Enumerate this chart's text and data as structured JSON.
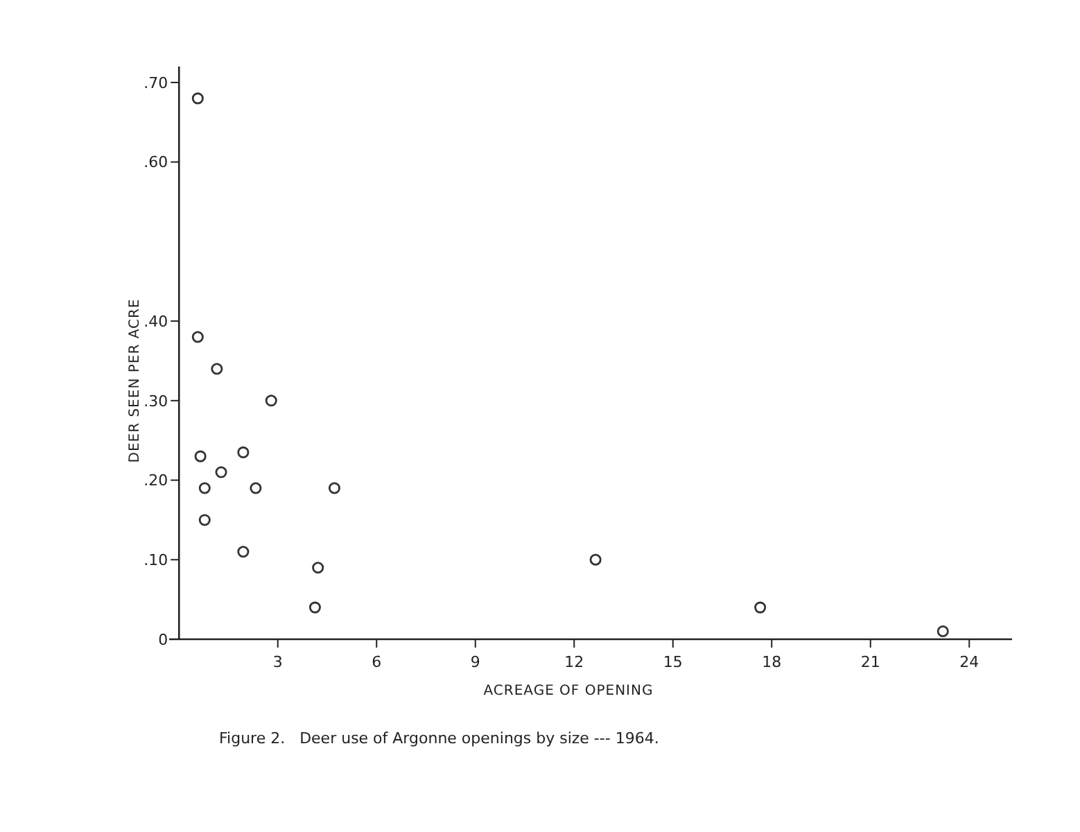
{
  "chart_data": {
    "type": "scatter",
    "xlabel": "ACREAGE OF OPENING",
    "ylabel": "DEER SEEN PER ACRE",
    "annotations": [
      "Figure 2.   Deer use of Argonne openings by size --- 1964."
    ],
    "x": [
      0.57,
      0.57,
      1.15,
      2.8,
      0.65,
      1.95,
      1.28,
      0.78,
      2.33,
      4.72,
      0.78,
      1.95,
      4.22,
      4.13,
      12.65,
      17.65,
      23.2
    ],
    "values": [
      0.68,
      0.38,
      0.34,
      0.3,
      0.23,
      0.235,
      0.21,
      0.19,
      0.19,
      0.19,
      0.15,
      0.11,
      0.09,
      0.04,
      0.1,
      0.04,
      0.01
    ],
    "color": "#333333",
    "marker": "circle",
    "xlim": [
      -0.3,
      25.3
    ],
    "xticks": [
      3,
      6,
      9,
      12,
      15,
      18,
      21,
      24
    ],
    "ylim": [
      0,
      0.72
    ],
    "yticks": [
      {
        "value": 0,
        "label": "0"
      },
      {
        "value": 0.1,
        "label": ".10"
      },
      {
        "value": 0.2,
        "label": ".20"
      },
      {
        "value": 0.3,
        "label": ".30"
      },
      {
        "value": 0.4,
        "label": ".40"
      },
      {
        "value": 0.6,
        "label": ".60"
      },
      {
        "value": 0.7,
        "label": ".70"
      }
    ],
    "grid": false
  }
}
